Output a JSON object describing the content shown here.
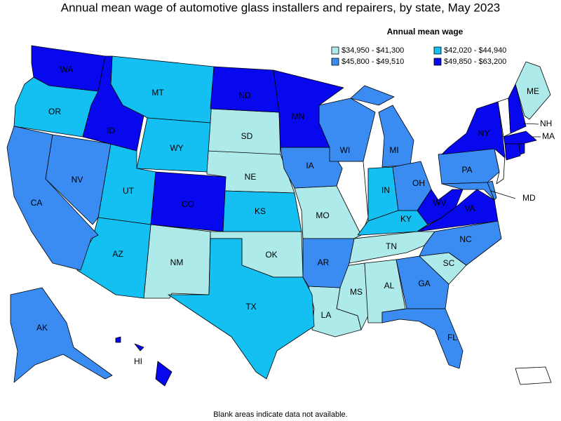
{
  "title": "Annual mean wage of automotive glass installers and repairers, by state, May 2023",
  "legend": {
    "title": "Annual mean wage",
    "classes": [
      {
        "label": "$34,950 - $41,300",
        "color": "#aeeaea",
        "states": [
          "ME",
          "SD",
          "NE",
          "MO",
          "NM",
          "OK",
          "TN",
          "MS",
          "AL",
          "LA",
          "SC"
        ]
      },
      {
        "label": "$42,020 - $44,940",
        "color": "#14c0f2",
        "states": [
          "OR",
          "MT",
          "WY",
          "UT",
          "AZ",
          "KS",
          "TX",
          "IN",
          "KY"
        ]
      },
      {
        "label": "$45,800 - $49,510",
        "color": "#3a8cf2",
        "states": [
          "CA",
          "NV",
          "AK",
          "IA",
          "WI",
          "MI",
          "OH",
          "PA",
          "AR",
          "GA",
          "FL",
          "NC",
          "MD",
          null
        ]
      },
      {
        "label": "$49,850 - $63,200",
        "color": "#0808ee",
        "states": [
          "WA",
          "ID",
          "CO",
          "ND",
          "MN",
          "NY",
          "WV",
          "VA",
          "HI",
          "NH",
          "MA",
          null,
          null
        ]
      }
    ]
  },
  "note": "Blank areas indicate data not available."
}
